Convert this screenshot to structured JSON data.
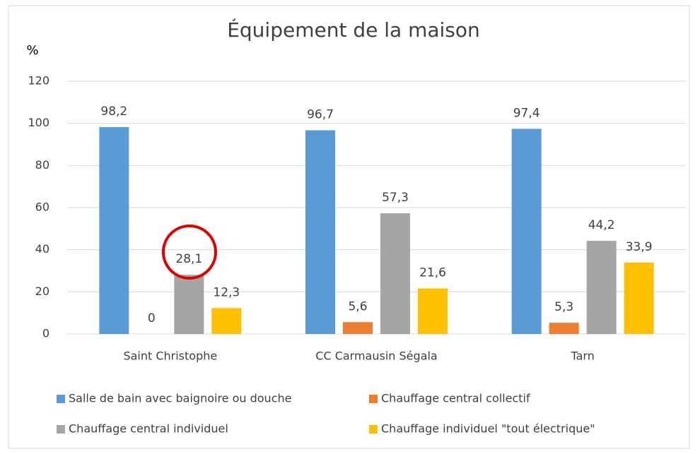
{
  "chart_data": {
    "type": "bar",
    "title": "Équipement de la maison",
    "y_label": "%",
    "categories": [
      "Saint Christophe",
      "CC Carmausin Ségala",
      "Tarn"
    ],
    "series": [
      {
        "name": "Salle de bain avec baignoire ou douche",
        "color": "#5b9bd5",
        "values": [
          98.2,
          96.7,
          97.4
        ],
        "value_labels": [
          "98,2",
          "96,7",
          "97,4"
        ]
      },
      {
        "name": "Chauffage central collectif",
        "color": "#ed7d31",
        "values": [
          0,
          5.6,
          5.3
        ],
        "value_labels": [
          "0",
          "5,6",
          "5,3"
        ]
      },
      {
        "name": "Chauffage central individuel",
        "color": "#a5a5a5",
        "values": [
          28.1,
          57.3,
          44.2
        ],
        "value_labels": [
          "28,1",
          "57,3",
          "44,2"
        ]
      },
      {
        "name": "Chauffage individuel \"tout électrique\"",
        "color": "#ffc000",
        "values": [
          12.3,
          21.6,
          33.9
        ],
        "value_labels": [
          "12,3",
          "21,6",
          "33,9"
        ]
      }
    ],
    "ylim": [
      0,
      120
    ],
    "yticks": [
      0,
      20,
      40,
      60,
      80,
      100,
      120
    ],
    "grid": true,
    "legend": "bottom"
  }
}
